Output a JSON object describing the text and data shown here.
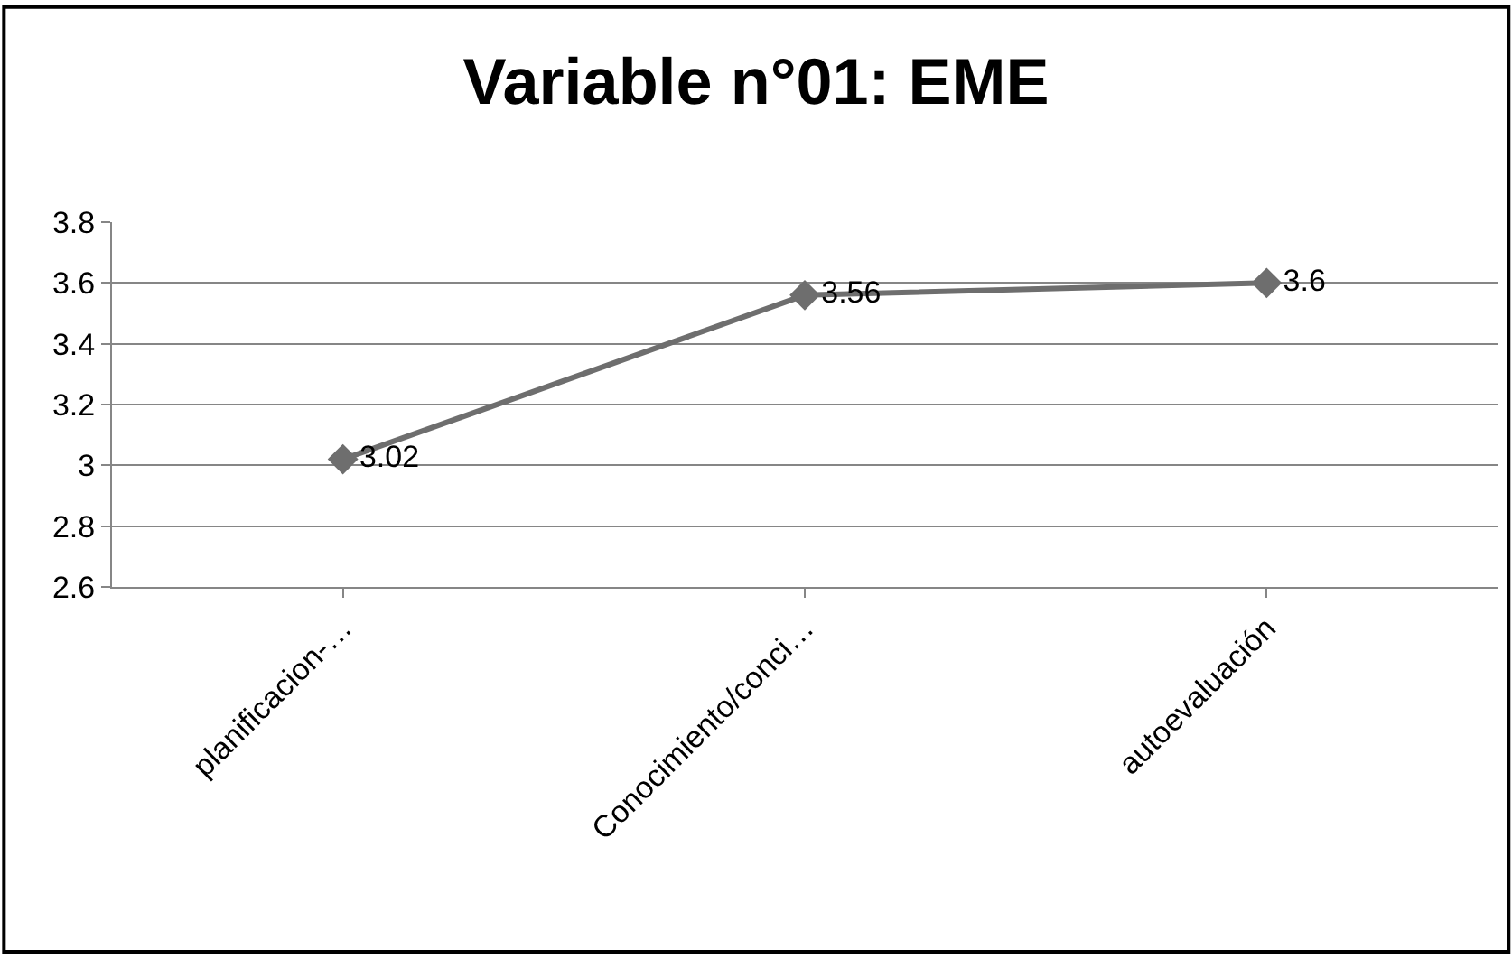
{
  "chart_data": {
    "type": "line",
    "title": "Variable n°01: EME",
    "categories": [
      "planificacion-…",
      "Conocimiento/conci…",
      "autoevaluación"
    ],
    "series": [
      {
        "color": "#6e6e6e",
        "values": [
          3.02,
          3.56,
          3.6
        ]
      }
    ],
    "ylim": [
      2.6,
      3.8
    ],
    "yticks": [
      2.6,
      2.8,
      3,
      3.2,
      3.4,
      3.6,
      3.8
    ],
    "grid": "y",
    "marker": "diamond",
    "line_style": "solid",
    "data_labels": true
  }
}
